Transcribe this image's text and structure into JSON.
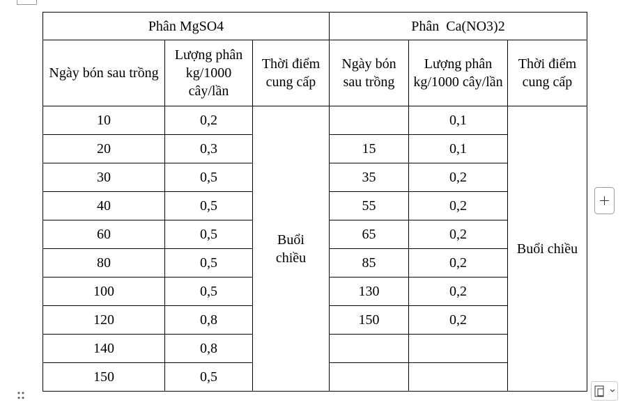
{
  "table": {
    "groups": [
      "Phân MgSO4",
      "Phân  Ca(NO3)2"
    ],
    "columns": [
      [
        "Ngày bón sau trồng",
        "Lượng phân kg/1000 cây/lần",
        "Thời điểm cung cấp"
      ],
      [
        "Ngày bón sau trồng",
        "Lượng phân kg/1000 cây/lần",
        "Thời điểm cung cấp"
      ]
    ],
    "rows": [
      [
        "10",
        "0,2",
        null,
        "0,1"
      ],
      [
        "20",
        "0,3",
        "15",
        "0,1"
      ],
      [
        "30",
        "0,5",
        "35",
        "0,2"
      ],
      [
        "40",
        "0,5",
        "55",
        "0,2"
      ],
      [
        "60",
        "0,5",
        "65",
        "0,2"
      ],
      [
        "80",
        "0,5",
        "85",
        "0,2"
      ],
      [
        "100",
        "0,5",
        "130",
        "0,2"
      ],
      [
        "120",
        "0,8",
        "150",
        "0,2"
      ],
      [
        "140",
        "0,8",
        null,
        null
      ],
      [
        "150",
        "0,5",
        null,
        null
      ]
    ],
    "time": [
      "Buổi chiều",
      "Buổi chiều"
    ]
  }
}
